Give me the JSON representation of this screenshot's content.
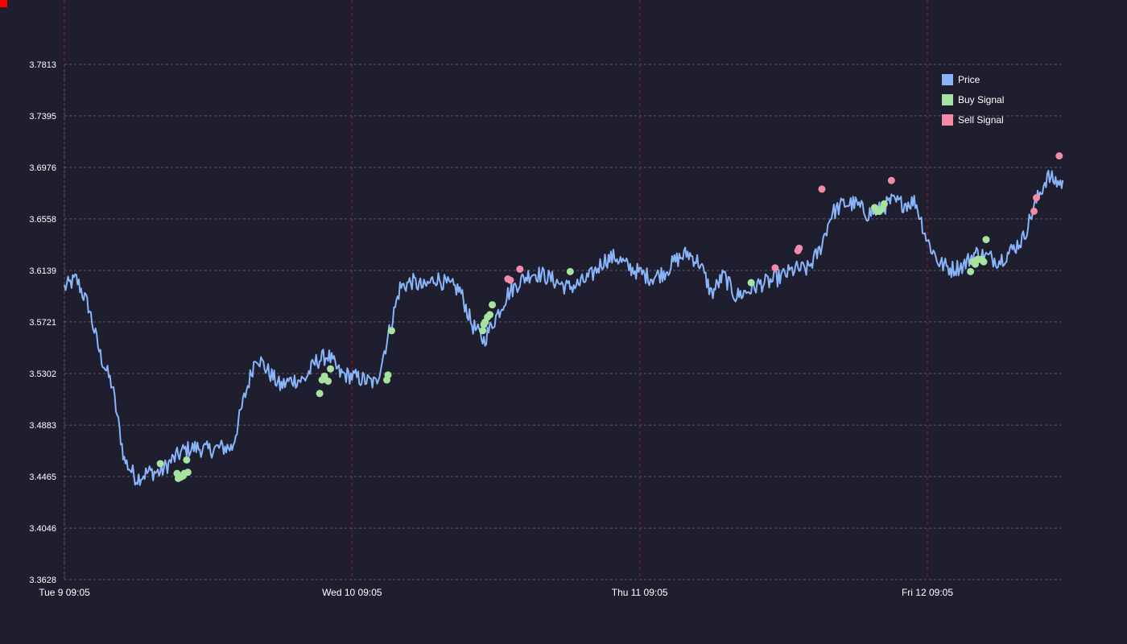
{
  "chart_data": {
    "type": "line",
    "title": "",
    "xlabel": "",
    "ylabel": "",
    "ylim": [
      3.3628,
      3.7813
    ],
    "xlim": [
      "Tue 9 09:05",
      "Fri 12 22:05"
    ],
    "y_ticks": [
      "3.3628",
      "3.4046",
      "3.4465",
      "3.4883",
      "3.5302",
      "3.5721",
      "3.6139",
      "3.6558",
      "3.6976",
      "3.7395",
      "3.7813"
    ],
    "x_ticks": [
      "Tue 9 09:05",
      "Wed 10 09:05",
      "Thu 11 09:05",
      "Fri 12 09:05"
    ],
    "x_tick_positions_hours": [
      0,
      24,
      48,
      72
    ],
    "grid": true,
    "legend_position": "top-right",
    "series": [
      {
        "name": "Price",
        "color": "#89b4fa",
        "x_hours": [
          0,
          1,
          2,
          3,
          4,
          5,
          6,
          7,
          8,
          9,
          10,
          11,
          12,
          13,
          14,
          15,
          16,
          17,
          18,
          19,
          20,
          21,
          22,
          23,
          24,
          25,
          26,
          27,
          28,
          29,
          30,
          31,
          32,
          33,
          34,
          35,
          36,
          37,
          38,
          39,
          40,
          41,
          42,
          43,
          44,
          45,
          46,
          47,
          48,
          49,
          50,
          51,
          52,
          53,
          54,
          55,
          56,
          57,
          58,
          59,
          60,
          61,
          62,
          63,
          64,
          65,
          66,
          67,
          68,
          69,
          70,
          71,
          72,
          73,
          74,
          75,
          76,
          77,
          78,
          79,
          80,
          81,
          82,
          83
        ],
        "values": [
          3.6,
          3.607,
          3.585,
          3.545,
          3.52,
          3.46,
          3.445,
          3.45,
          3.45,
          3.46,
          3.468,
          3.47,
          3.468,
          3.47,
          3.47,
          3.51,
          3.545,
          3.532,
          3.52,
          3.525,
          3.525,
          3.54,
          3.545,
          3.53,
          3.528,
          3.525,
          3.522,
          3.56,
          3.6,
          3.605,
          3.6,
          3.608,
          3.602,
          3.598,
          3.57,
          3.557,
          3.576,
          3.595,
          3.605,
          3.612,
          3.61,
          3.605,
          3.6,
          3.603,
          3.61,
          3.622,
          3.625,
          3.617,
          3.612,
          3.608,
          3.612,
          3.622,
          3.628,
          3.62,
          3.595,
          3.61,
          3.593,
          3.597,
          3.603,
          3.605,
          3.61,
          3.615,
          3.615,
          3.63,
          3.66,
          3.668,
          3.668,
          3.66,
          3.663,
          3.67,
          3.668,
          3.67,
          3.638,
          3.62,
          3.615,
          3.618,
          3.628,
          3.625,
          3.622,
          3.63,
          3.64,
          3.668,
          3.69,
          3.685
        ]
      },
      {
        "name": "Buy Signal",
        "color": "#a6e3a1",
        "x_hours": [
          8.0,
          9.4,
          9.5,
          9.7,
          9.9,
          10.0,
          10.2,
          10.3,
          21.3,
          21.5,
          21.7,
          22.0,
          22.2,
          26.9,
          27.0,
          27.3,
          34.9,
          35.0,
          35.1,
          35.3,
          35.5,
          35.7,
          42.2,
          57.3,
          67.6,
          67.8,
          68.0,
          68.2,
          68.4,
          75.6,
          75.8,
          76.0,
          76.2,
          76.5,
          76.7,
          76.9
        ],
        "values": [
          3.457,
          3.449,
          3.445,
          3.446,
          3.447,
          3.449,
          3.46,
          3.45,
          3.514,
          3.525,
          3.528,
          3.524,
          3.534,
          3.525,
          3.529,
          3.565,
          3.565,
          3.57,
          3.572,
          3.576,
          3.578,
          3.586,
          3.613,
          3.604,
          3.665,
          3.662,
          3.662,
          3.664,
          3.668,
          3.613,
          3.621,
          3.619,
          3.623,
          3.623,
          3.621,
          3.639
        ]
      },
      {
        "name": "Sell Signal",
        "color": "#f38ba8",
        "x_hours": [
          37.0,
          37.2,
          38.0,
          59.3,
          61.2,
          61.3,
          63.2,
          69.0,
          80.9,
          81.1,
          83.0
        ],
        "values": [
          3.607,
          3.606,
          3.615,
          3.616,
          3.63,
          3.632,
          3.68,
          3.687,
          3.662,
          3.673,
          3.707
        ]
      }
    ]
  }
}
